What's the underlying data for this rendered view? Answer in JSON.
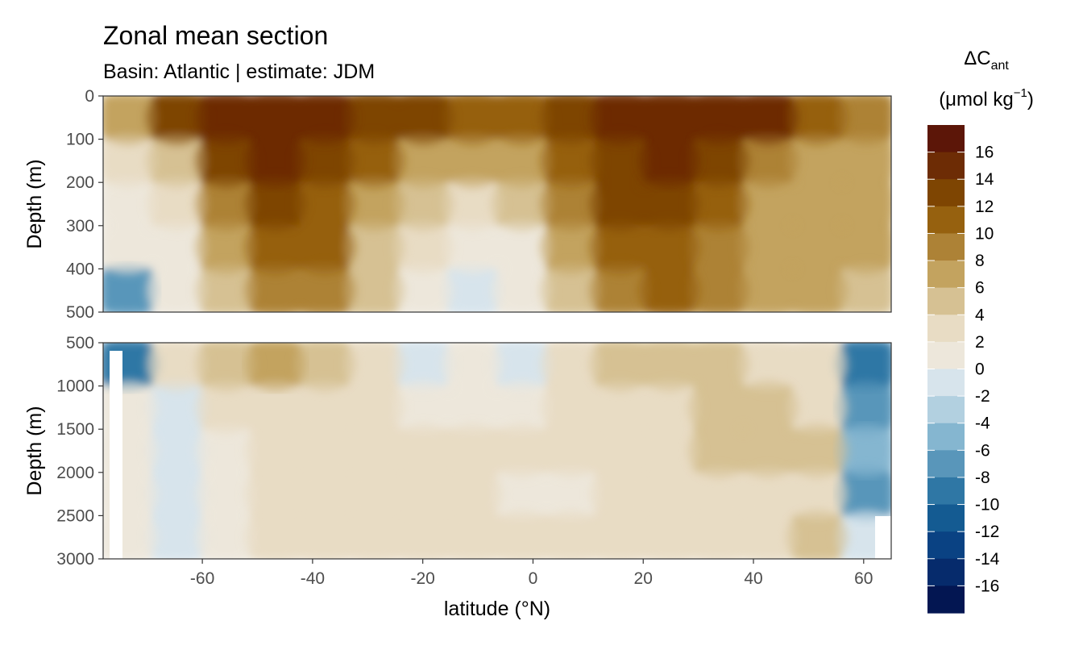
{
  "chart_data": {
    "type": "heatmap",
    "title": "Zonal mean section",
    "subtitle": "Basin: Atlantic | estimate: JDM",
    "xlabel": "latitude (°N)",
    "ylabel": "Depth (m)",
    "x_ticks": [
      "-60",
      "-40",
      "-20",
      "0",
      "20",
      "40",
      "60"
    ],
    "xlim": [
      -78,
      65
    ],
    "panels": [
      {
        "name": "upper",
        "ylim": [
          0,
          500
        ],
        "y_ticks": [
          "0",
          "100",
          "200",
          "300",
          "400",
          "500"
        ]
      },
      {
        "name": "lower",
        "ylim": [
          500,
          3000
        ],
        "y_ticks": [
          "500",
          "1000",
          "1500",
          "2000",
          "2500",
          "3000"
        ]
      }
    ],
    "legend": {
      "title_main": "ΔC",
      "title_sub": "ant",
      "unit_prefix": "(μmol kg",
      "unit_sup": "−1",
      "unit_suffix": ")",
      "tick_labels": [
        "16",
        "14",
        "12",
        "10",
        "8",
        "6",
        "4",
        "2",
        "0",
        "-2",
        "-4",
        "-6",
        "-8",
        "-10",
        "-12",
        "-14",
        "-16"
      ],
      "colors": [
        "#5c1608",
        "#6d2c05",
        "#7e4502",
        "#96610f",
        "#ad8236",
        "#c3a35f",
        "#d6c193",
        "#e8dcc4",
        "#ede7db",
        "#d7e4ec",
        "#b2d0e0",
        "#85b6d0",
        "#5996ba",
        "#2f77a5",
        "#145b92",
        "#0a4283",
        "#062b6c",
        "#031652"
      ]
    },
    "upper_field": [
      [
        8,
        14,
        16,
        16,
        16,
        14,
        14,
        12,
        12,
        14,
        16,
        16,
        16,
        16,
        12,
        10
      ],
      [
        4,
        6,
        14,
        16,
        14,
        12,
        8,
        8,
        8,
        12,
        14,
        16,
        14,
        10,
        8,
        8
      ],
      [
        2,
        4,
        10,
        14,
        12,
        8,
        6,
        4,
        6,
        10,
        14,
        14,
        12,
        8,
        8,
        8
      ],
      [
        2,
        2,
        8,
        12,
        12,
        6,
        4,
        2,
        2,
        8,
        12,
        12,
        10,
        8,
        8,
        8
      ],
      [
        -6,
        2,
        6,
        10,
        10,
        6,
        2,
        0,
        2,
        6,
        10,
        12,
        10,
        8,
        8,
        6
      ]
    ],
    "lower_field": [
      [
        -8,
        4,
        6,
        8,
        6,
        4,
        0,
        2,
        0,
        4,
        6,
        6,
        6,
        4,
        4,
        -8
      ],
      [
        2,
        0,
        4,
        4,
        4,
        4,
        2,
        2,
        2,
        4,
        4,
        4,
        6,
        6,
        4,
        -6
      ],
      [
        2,
        0,
        2,
        4,
        4,
        4,
        4,
        4,
        4,
        4,
        4,
        4,
        6,
        6,
        6,
        -4
      ],
      [
        2,
        0,
        2,
        4,
        4,
        4,
        4,
        4,
        2,
        2,
        4,
        4,
        4,
        4,
        4,
        -6
      ],
      [
        2,
        0,
        2,
        4,
        4,
        4,
        4,
        4,
        4,
        4,
        4,
        4,
        4,
        4,
        6,
        0
      ]
    ],
    "field_levels": [
      -8,
      -6,
      -4,
      -2,
      0,
      2,
      4,
      6,
      8,
      10,
      12,
      14,
      16
    ]
  }
}
